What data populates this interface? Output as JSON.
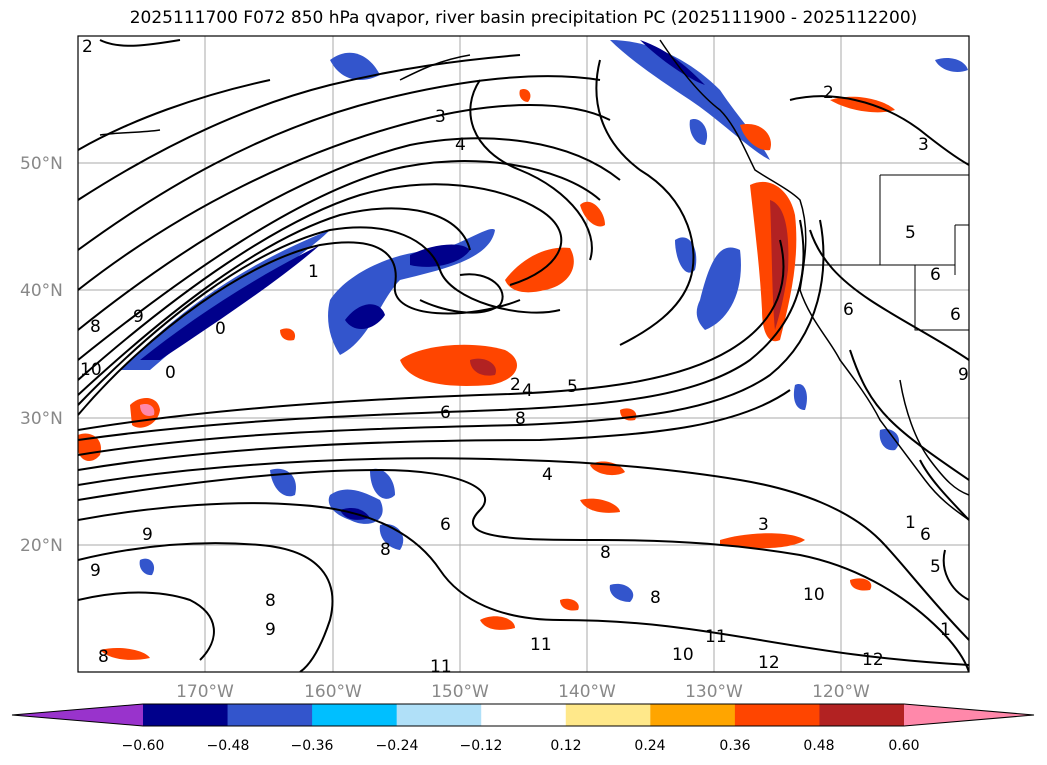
{
  "title": "2025111700 F072 850 hPa qvapor, river basin precipitation PC (2025111900 - 2025112200)",
  "map": {
    "lat_range": [
      10,
      60
    ],
    "lon_range": [
      -180,
      -110
    ],
    "lat_labels": [
      "50°N",
      "40°N",
      "30°N",
      "20°N"
    ],
    "lon_labels": [
      "170°W",
      "160°W",
      "150°W",
      "140°W",
      "130°W",
      "120°W"
    ],
    "contour_labels": [
      "2",
      "3",
      "4",
      "1",
      "0",
      "8",
      "9",
      "10",
      "0",
      "2",
      "4",
      "5",
      "6",
      "8",
      "4",
      "6",
      "8",
      "3",
      "9",
      "8",
      "9",
      "8",
      "9",
      "8",
      "10",
      "11",
      "10",
      "11",
      "12",
      "12",
      "1",
      "6",
      "5",
      "1",
      "6",
      "2",
      "3",
      "5",
      "6",
      "6",
      "9",
      "11",
      "8"
    ]
  },
  "colorbar": {
    "ticks": [
      "−0.60",
      "−0.48",
      "−0.36",
      "−0.24",
      "−0.12",
      "0.12",
      "0.24",
      "0.36",
      "0.48",
      "0.60"
    ],
    "colors": [
      "#9933cc",
      "#00008b",
      "#3355cc",
      "#00bfff",
      "#b0e0f8",
      "#ffffff",
      "#ffe88a",
      "#ffa500",
      "#ff4500",
      "#b22222",
      "#ff88aa"
    ]
  }
}
